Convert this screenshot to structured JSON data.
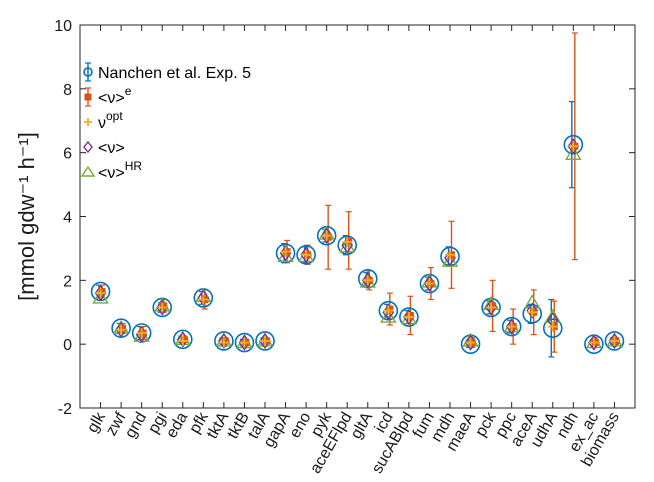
{
  "chart_data": {
    "type": "scatter",
    "ylabel": "[mmol gdw⁻¹ h⁻¹]",
    "ylim": [
      -2,
      10
    ],
    "yticks": [
      -2,
      0,
      2,
      4,
      6,
      8,
      10
    ],
    "grid": false,
    "legend_position": "top-left",
    "categories": [
      "glk",
      "zwf",
      "gnd",
      "pgi",
      "eda",
      "pfk",
      "tktA",
      "tktB",
      "talA",
      "gapA",
      "eno",
      "pyk",
      "aceEFlpd",
      "gltA",
      "icd",
      "sucABlpd",
      "fum",
      "mdh",
      "maeA",
      "pck",
      "ppc",
      "aceA",
      "udhA",
      "ndh",
      "ex_ac",
      "biomass"
    ],
    "series": [
      {
        "name": "Nanchen et al. Exp. 5",
        "marker": "circle",
        "color": "#0072BD",
        "values": [
          1.65,
          0.5,
          0.35,
          1.15,
          0.15,
          1.45,
          0.1,
          0.05,
          0.1,
          2.85,
          2.8,
          3.4,
          3.1,
          2.05,
          1.05,
          0.85,
          1.9,
          2.75,
          0.0,
          1.15,
          0.55,
          0.95,
          0.5,
          6.25,
          0.0,
          0.1
        ],
        "errors": [
          0.2,
          0.15,
          0.2,
          0.15,
          0.1,
          0.2,
          0.1,
          0.1,
          0.1,
          0.3,
          0.25,
          0.2,
          0.3,
          0.2,
          0.2,
          0.2,
          0.2,
          0.3,
          0.1,
          0.2,
          0.2,
          0.3,
          0.9,
          1.35,
          0.1,
          0.1
        ]
      },
      {
        "name": "<νᵉ>",
        "marker": "square",
        "color": "#D95319",
        "values": [
          1.65,
          0.5,
          0.35,
          1.2,
          0.15,
          1.4,
          0.1,
          0.05,
          0.1,
          2.9,
          2.8,
          3.35,
          3.25,
          2.0,
          1.1,
          0.9,
          1.9,
          2.8,
          0.05,
          1.2,
          0.55,
          1.0,
          0.55,
          6.2,
          0.05,
          0.1
        ],
        "errors": [
          0.2,
          0.15,
          0.2,
          0.2,
          0.1,
          0.3,
          0.1,
          0.1,
          0.1,
          0.35,
          0.3,
          1.0,
          0.9,
          0.3,
          0.5,
          0.6,
          0.5,
          1.05,
          0.15,
          0.8,
          0.55,
          0.7,
          0.8,
          3.55,
          0.15,
          0.1
        ]
      },
      {
        "name": "ν^opt",
        "marker": "plus",
        "color": "#EDB120",
        "values": [
          1.6,
          0.45,
          0.35,
          1.15,
          0.1,
          1.4,
          0.05,
          0.05,
          0.1,
          2.9,
          2.8,
          3.4,
          3.2,
          2.0,
          1.05,
          0.85,
          1.9,
          2.8,
          0.05,
          1.15,
          0.55,
          1.0,
          0.55,
          6.2,
          0.05,
          0.1
        ]
      },
      {
        "name": "<ν>",
        "marker": "diamond",
        "color": "#7E2F8E",
        "values": [
          1.6,
          0.45,
          0.3,
          1.15,
          0.15,
          1.45,
          0.1,
          0.05,
          0.1,
          2.85,
          2.8,
          3.4,
          3.1,
          2.0,
          1.0,
          0.85,
          1.9,
          2.7,
          0.05,
          1.15,
          0.55,
          1.05,
          0.75,
          6.2,
          0.05,
          0.1
        ]
      },
      {
        "name": "<ν>^HR",
        "marker": "triangle",
        "color": "#77AC30",
        "values": [
          1.45,
          0.5,
          0.25,
          1.2,
          0.15,
          1.5,
          0.1,
          0.05,
          0.1,
          2.75,
          2.75,
          3.45,
          3.05,
          1.95,
          0.85,
          0.8,
          1.95,
          2.6,
          0.1,
          1.25,
          0.55,
          1.3,
          0.85,
          5.95,
          0.05,
          0.1
        ]
      }
    ]
  },
  "legend": {
    "entries": [
      {
        "base": "Nanchen et al. Exp. 5",
        "sup": "",
        "marker": "circle",
        "color": "#0072BD"
      },
      {
        "base": "<ν>",
        "sup": "e",
        "marker": "square",
        "color": "#D95319"
      },
      {
        "base": "ν",
        "sup": "opt",
        "marker": "plus",
        "color": "#EDB120"
      },
      {
        "base": "<ν>",
        "sup": "",
        "marker": "diamond",
        "color": "#7E2F8E"
      },
      {
        "base": "<ν>",
        "sup": "HR",
        "marker": "triangle",
        "color": "#77AC30"
      }
    ]
  }
}
